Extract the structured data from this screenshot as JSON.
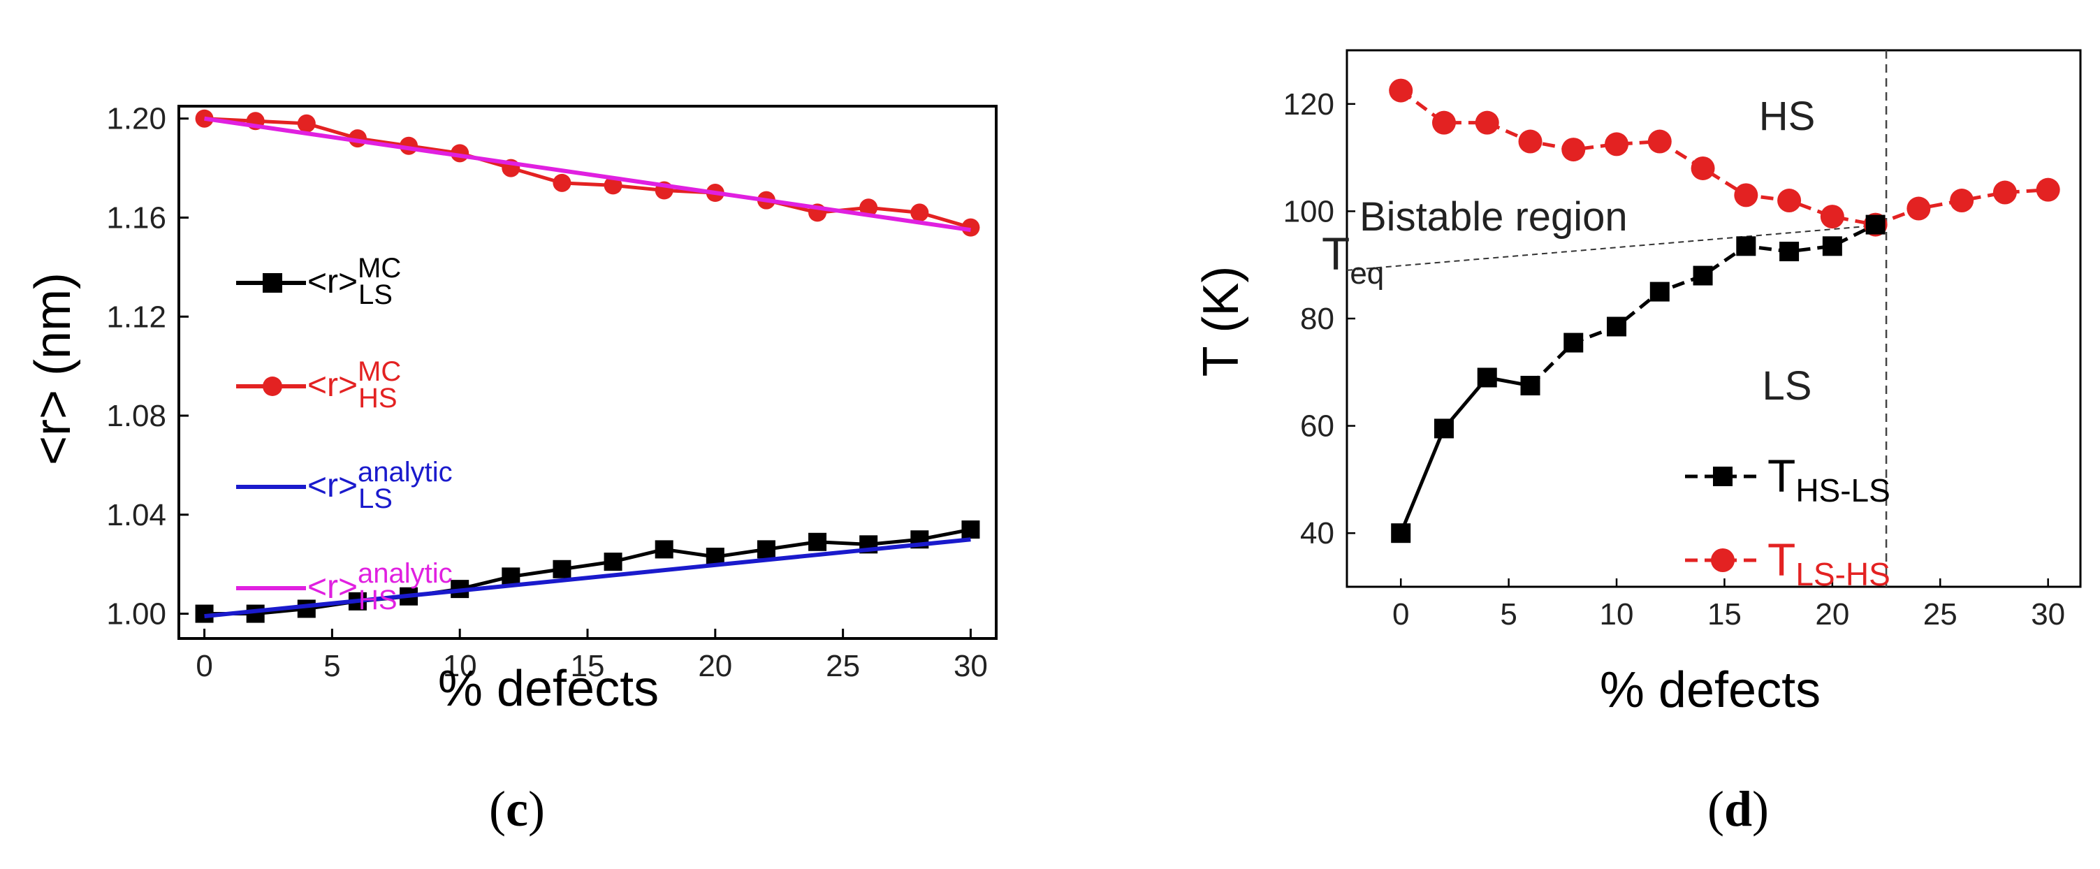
{
  "chart_data": [
    {
      "type": "line",
      "panel_label": "c",
      "xlabel": "% defects",
      "ylabel": "<r> (nm)",
      "xlim": [
        -1,
        31
      ],
      "ylim": [
        0.99,
        1.205
      ],
      "x_ticks": [
        0,
        5,
        10,
        15,
        20,
        25,
        30
      ],
      "y_ticks": [
        1.0,
        1.04,
        1.08,
        1.12,
        1.16,
        1.2
      ],
      "y_tick_labels": [
        "1.00",
        "1.04",
        "1.08",
        "1.12",
        "1.16",
        "1.20"
      ],
      "series": [
        {
          "name": "<r>LS MC",
          "legend_base": "<r>",
          "legend_sup": "MC",
          "legend_sub": "LS",
          "color": "#000000",
          "marker": "square",
          "line": "solid",
          "x": [
            0,
            2,
            4,
            6,
            8,
            10,
            12,
            14,
            16,
            18,
            20,
            22,
            24,
            26,
            28,
            30
          ],
          "y": [
            1.0,
            1.0,
            1.002,
            1.005,
            1.007,
            1.01,
            1.015,
            1.018,
            1.021,
            1.026,
            1.023,
            1.026,
            1.029,
            1.028,
            1.03,
            1.034
          ]
        },
        {
          "name": "<r>HS MC",
          "legend_base": "<r>",
          "legend_sup": "MC",
          "legend_sub": "HS",
          "color": "#e32222",
          "marker": "circle",
          "line": "solid",
          "x": [
            0,
            2,
            4,
            6,
            8,
            10,
            12,
            14,
            16,
            18,
            20,
            22,
            24,
            26,
            28,
            30
          ],
          "y": [
            1.2,
            1.199,
            1.198,
            1.192,
            1.189,
            1.186,
            1.18,
            1.174,
            1.173,
            1.171,
            1.17,
            1.167,
            1.162,
            1.164,
            1.162,
            1.156
          ]
        },
        {
          "name": "<r>LS analytic",
          "legend_base": "<r>",
          "legend_sup": "analytic",
          "legend_sub": "LS",
          "color": "#1a1acc",
          "marker": "none",
          "line": "solid",
          "x": [
            0,
            30
          ],
          "y": [
            0.999,
            1.03
          ]
        },
        {
          "name": "<r>HS analytic",
          "legend_base": "<r>",
          "legend_sup": "analytic",
          "legend_sub": "HS",
          "color": "#e020e0",
          "marker": "none",
          "line": "solid",
          "x": [
            0,
            30
          ],
          "y": [
            1.2,
            1.155
          ]
        }
      ],
      "caption": "(c)"
    },
    {
      "type": "line",
      "panel_label": "d",
      "xlabel": "% defects",
      "ylabel": "T (K)",
      "xlim": [
        -2.5,
        31.5
      ],
      "ylim": [
        30,
        130
      ],
      "x_ticks": [
        0,
        5,
        10,
        15,
        20,
        25,
        30
      ],
      "y_ticks": [
        40,
        60,
        80,
        100,
        120
      ],
      "series": [
        {
          "name": "T HS-LS",
          "legend_base": "T",
          "legend_sub": "HS-LS",
          "color": "#000000",
          "marker": "square",
          "line": "solid-then-dashed",
          "x": [
            0,
            2,
            4,
            6,
            8,
            10,
            12,
            14,
            16,
            18,
            20,
            22
          ],
          "y": [
            40,
            59.5,
            69,
            67.5,
            75.5,
            78.5,
            85,
            88,
            93.5,
            92.5,
            93.5,
            97.5
          ]
        },
        {
          "name": "T LS-HS",
          "legend_base": "T",
          "legend_sub": "LS-HS",
          "color": "#e32222",
          "marker": "circle",
          "line": "dashed",
          "x": [
            0,
            2,
            4,
            6,
            8,
            10,
            12,
            14,
            16,
            18,
            20,
            22,
            24,
            26,
            28,
            30
          ],
          "y": [
            122.5,
            116.5,
            116.5,
            113,
            111.5,
            112.5,
            113,
            108,
            103,
            102,
            99,
            97.5,
            100.5,
            102,
            103.5,
            104
          ]
        }
      ],
      "annotations": {
        "hs": "HS",
        "ls": "LS",
        "bistable": "Bistable region",
        "teq_base": "T",
        "teq_sub": "eq",
        "vline_x": 22.5,
        "teq_line": {
          "x": [
            -2.5,
            22.5
          ],
          "y": [
            89,
            97.5
          ]
        }
      },
      "caption": "(d)"
    }
  ]
}
